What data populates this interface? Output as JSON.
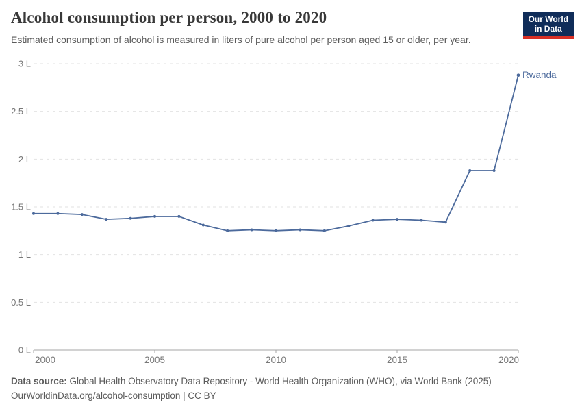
{
  "header": {
    "title": "Alcohol consumption per person, 2000 to 2020",
    "subtitle": "Estimated consumption of alcohol is measured in liters of pure alcohol per person aged 15 or older, per year.",
    "logo": {
      "line1": "Our World",
      "line2": "in Data",
      "bg_color": "#102d59",
      "accent_color": "#d93025"
    }
  },
  "chart_data": {
    "type": "line",
    "title": "Alcohol consumption per person, 2000 to 2020",
    "xlabel": "",
    "ylabel": "",
    "xlim": [
      2000,
      2020
    ],
    "ylim": [
      0,
      3
    ],
    "x_ticks": [
      2000,
      2005,
      2010,
      2015,
      2020
    ],
    "y_ticks": [
      0,
      0.5,
      1,
      1.5,
      2,
      2.5,
      3
    ],
    "y_tick_suffix": " L",
    "grid": "horizontal-dashed",
    "legend_position": "end-of-line-label",
    "series": [
      {
        "name": "Rwanda",
        "color": "#4c6a9c",
        "x": [
          2000,
          2001,
          2002,
          2003,
          2004,
          2005,
          2006,
          2007,
          2008,
          2009,
          2010,
          2011,
          2012,
          2013,
          2014,
          2015,
          2016,
          2017,
          2018,
          2019,
          2020
        ],
        "values": [
          1.43,
          1.43,
          1.42,
          1.37,
          1.38,
          1.4,
          1.4,
          1.31,
          1.25,
          1.26,
          1.25,
          1.26,
          1.25,
          1.3,
          1.36,
          1.37,
          1.36,
          1.34,
          1.88,
          1.88,
          2.88
        ]
      }
    ]
  },
  "footer": {
    "data_source_label": "Data source:",
    "data_source_text": "Global Health Observatory Data Repository - World Health Organization (WHO), via World Bank (2025)",
    "url": "OurWorldinData.org/alcohol-consumption",
    "separator": "|",
    "license": "CC BY"
  }
}
